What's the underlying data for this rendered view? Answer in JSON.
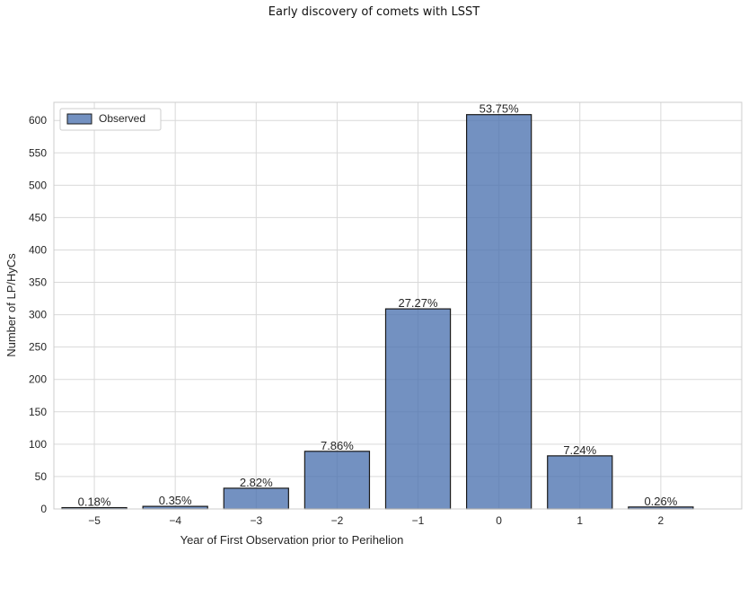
{
  "chart_data": {
    "type": "bar",
    "title": "Early discovery of comets with LSST",
    "xlabel": "Year of First Observation prior to Perihelion",
    "ylabel": "Number of LP/HyCs",
    "categories": [
      "−5",
      "−4",
      "−3",
      "−2",
      "−1",
      "0",
      "1",
      "2"
    ],
    "x": [
      -5,
      -4,
      -3,
      -2,
      -1,
      0,
      1,
      2
    ],
    "series": [
      {
        "name": "Observed",
        "values": [
          2,
          4,
          32,
          89,
          309,
          609,
          82,
          3
        ],
        "labels": [
          "0.18%",
          "0.35%",
          "2.82%",
          "7.86%",
          "27.27%",
          "53.75%",
          "7.24%",
          "0.26%"
        ]
      }
    ],
    "xlim": [
      -5.5,
      3.0
    ],
    "ylim": [
      0,
      628
    ],
    "yticks": [
      0,
      50,
      100,
      150,
      200,
      250,
      300,
      350,
      400,
      450,
      500,
      550,
      600
    ],
    "grid": true,
    "legend": "top-left",
    "colors": {
      "bar": "#4c72b0",
      "edge": "#1a1a1a",
      "grid": "#d9d9d9"
    }
  }
}
